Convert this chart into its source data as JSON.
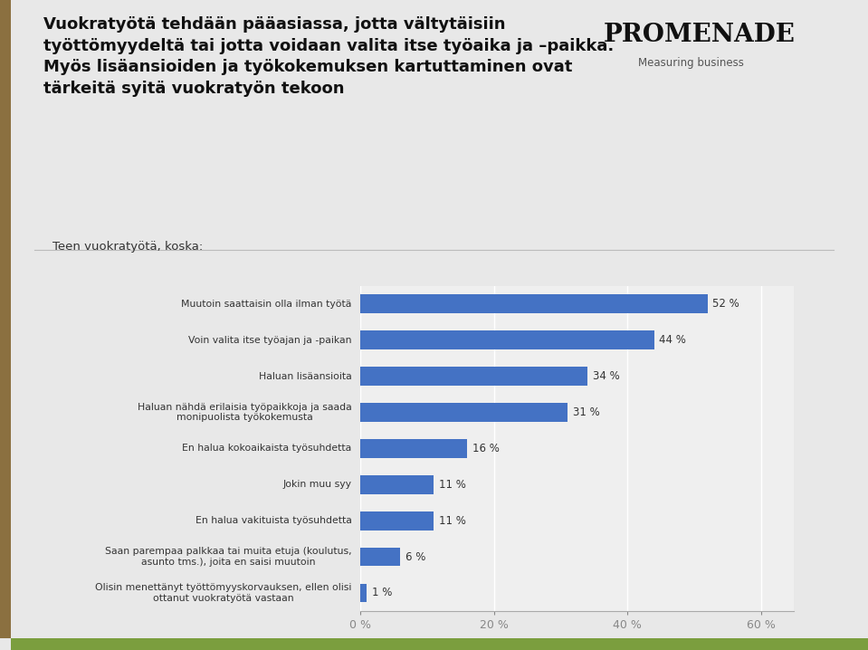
{
  "title_line1": "Vuokratyötä tehdään pääasiassa, jotta vältytäisiin",
  "title_line2": "työttömyydeltä tai jotta voidaan valita itse työaika ja –paikka.",
  "title_line3": "Myös lisäansioiden ja työkokemuksen kartuttaminen ovat",
  "title_line4": "tärkeitä syitä vuokratyön tekoon",
  "subtitle": "Teen vuokratyötä, koska:",
  "categories": [
    "Muutoin saattaisin olla ilman työtä",
    "Voin valita itse työajan ja -paikan",
    "Haluan lisäansioita",
    "Haluan nähdä erilaisia työpaikkoja ja saada\nmonipuolista työkokemusta",
    "En halua kokoaikaista työsuhdetta",
    "Jokin muu syy",
    "En halua vakituista työsuhdetta",
    "Saan parempaa palkkaa tai muita etuja (koulutus,\nasunto tms.), joita en saisi muutoin",
    "Olisin menettänyt työttömyyskorvauksen, ellen olisi\nottanut vuokratyötä vastaan"
  ],
  "values": [
    52,
    44,
    34,
    31,
    16,
    11,
    11,
    6,
    1
  ],
  "bar_color": "#4472C4",
  "background_color": "#E8E8E8",
  "chart_bg_color": "#EFEFEF",
  "text_color": "#333333",
  "xlim": [
    0,
    65
  ],
  "xtick_labels": [
    "0 %",
    "20 %",
    "40 %",
    "60 %"
  ],
  "xtick_values": [
    0,
    20,
    40,
    60
  ],
  "logo_text": "PROMENADE",
  "logo_sub": "Measuring business",
  "left_accent_color": "#8B7355",
  "bottom_accent_color": "#7B9E3E",
  "gridline_color": "#FFFFFF"
}
